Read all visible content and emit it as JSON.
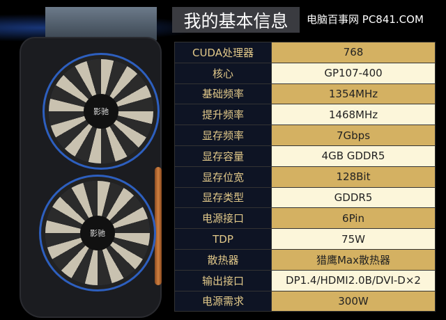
{
  "header": {
    "title": "我的基本信息",
    "site": "电脑百事网 PC841.COM"
  },
  "product": {
    "fan_logo": "影驰"
  },
  "colors": {
    "label_bg": "#0e1424",
    "label_text": "#e2c98a",
    "gold_row": "#d4b162",
    "cream_row": "#fcf6da"
  },
  "specs": [
    {
      "k": "CUDA处理器",
      "v": "768"
    },
    {
      "k": "核心",
      "v": "GP107-400"
    },
    {
      "k": "基础频率",
      "v": "1354MHz"
    },
    {
      "k": "提升频率",
      "v": "1468MHz"
    },
    {
      "k": "显存频率",
      "v": "7Gbps"
    },
    {
      "k": "显存容量",
      "v": "4GB GDDR5"
    },
    {
      "k": "显存位宽",
      "v": "128Bit"
    },
    {
      "k": "显存类型",
      "v": "GDDR5"
    },
    {
      "k": "电源接口",
      "v": "6Pin"
    },
    {
      "k": "TDP",
      "v": "75W"
    },
    {
      "k": "散热器",
      "v": "猎鹰Max散热器"
    },
    {
      "k": "输出接口",
      "v": "DP1.4/HDMI2.0B/DVI-D×2"
    },
    {
      "k": "电源需求",
      "v": "300W"
    }
  ]
}
